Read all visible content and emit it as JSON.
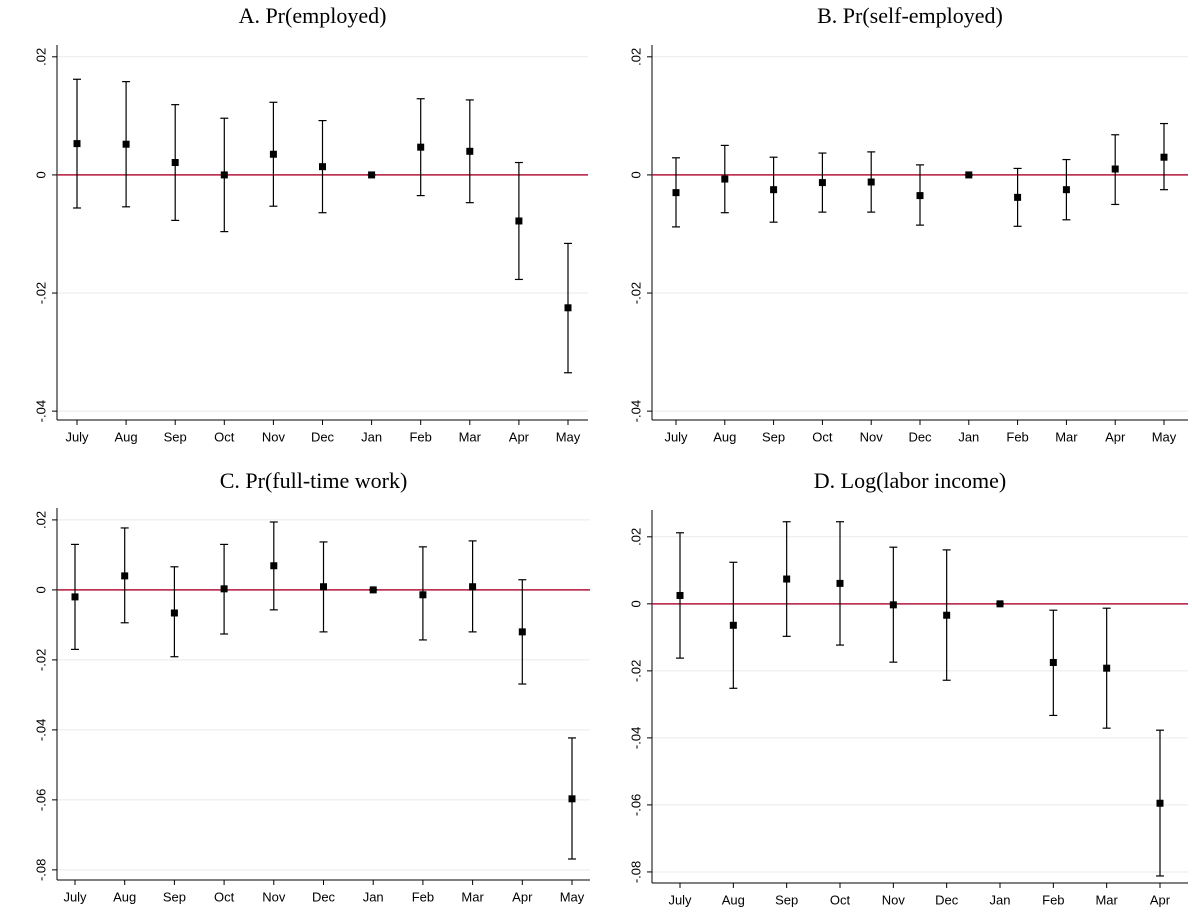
{
  "chart_data": [
    {
      "type": "errorbar",
      "title": "A. Pr(employed)",
      "categories": [
        "July",
        "Aug",
        "Sep",
        "Oct",
        "Nov",
        "Dec",
        "Jan",
        "Feb",
        "Mar",
        "Apr",
        "May"
      ],
      "values": [
        0.0053,
        0.0052,
        0.0021,
        0.0,
        0.0035,
        0.0014,
        0,
        0.0047,
        0.004,
        -0.0078,
        -0.0225
      ],
      "lower": [
        -0.0056,
        -0.0054,
        -0.0077,
        -0.0096,
        -0.0053,
        -0.0064,
        0,
        -0.0035,
        -0.0047,
        -0.0177,
        -0.0335
      ],
      "upper": [
        0.0162,
        0.0158,
        0.0119,
        0.0096,
        0.0123,
        0.0092,
        0,
        0.0129,
        0.0127,
        0.0021,
        -0.0116
      ],
      "color": "#000000",
      "refline": 0,
      "refline_color": "#b5163c",
      "grid": true,
      "ylim": [
        -0.0415,
        0.022
      ],
      "yticks": [
        {
          "value": -0.04,
          "label": "-.04"
        },
        {
          "value": -0.02,
          "label": "-.02"
        },
        0,
        {
          "value": 0.02,
          "label": ".02"
        }
      ]
    },
    {
      "type": "errorbar",
      "title": "B. Pr(self-employed)",
      "categories": [
        "July",
        "Aug",
        "Sep",
        "Oct",
        "Nov",
        "Dec",
        "Jan",
        "Feb",
        "Mar",
        "Apr",
        "May"
      ],
      "values": [
        -0.003,
        -0.0007,
        -0.0025,
        -0.0013,
        -0.0012,
        -0.0035,
        0,
        -0.0038,
        -0.0025,
        0.001,
        0.003
      ],
      "lower": [
        -0.0088,
        -0.0064,
        -0.008,
        -0.0063,
        -0.0063,
        -0.0085,
        0,
        -0.0087,
        -0.0076,
        -0.005,
        -0.0025
      ],
      "upper": [
        0.0029,
        0.005,
        0.003,
        0.0037,
        0.0039,
        0.0017,
        0,
        0.0011,
        0.0026,
        0.0068,
        0.0087
      ],
      "color": "#000000",
      "refline": 0,
      "refline_color": "#b5163c",
      "grid": true,
      "ylim": [
        -0.0415,
        0.022
      ],
      "yticks": [
        {
          "value": -0.04,
          "label": "-.04"
        },
        {
          "value": -0.02,
          "label": "-.02"
        },
        0,
        {
          "value": 0.02,
          "label": ".02"
        }
      ]
    },
    {
      "type": "errorbar",
      "title": "C. Pr(full-time work)",
      "categories": [
        "July",
        "Aug",
        "Sep",
        "Oct",
        "Nov",
        "Dec",
        "Jan",
        "Feb",
        "Mar",
        "Apr",
        "May"
      ],
      "values": [
        -0.002,
        0.004,
        -0.0066,
        0.0003,
        0.0069,
        0.0009,
        0,
        -0.0014,
        0.0009,
        -0.012,
        -0.0597
      ],
      "lower": [
        -0.017,
        -0.0094,
        -0.0191,
        -0.0126,
        -0.0057,
        -0.012,
        0,
        -0.0143,
        -0.012,
        -0.0269,
        -0.0769
      ],
      "upper": [
        0.013,
        0.0177,
        0.0066,
        0.013,
        0.0194,
        0.0137,
        0,
        0.0123,
        0.014,
        0.0029,
        -0.0423
      ],
      "color": "#000000",
      "refline": 0,
      "refline_color": "#b5163c",
      "grid": true,
      "ylim": [
        -0.0829,
        0.0234
      ],
      "yticks": [
        {
          "value": -0.08,
          "label": "-.08"
        },
        {
          "value": -0.06,
          "label": "-.06"
        },
        {
          "value": -0.04,
          "label": "-.04"
        },
        {
          "value": -0.02,
          "label": "-.02"
        },
        0,
        {
          "value": 0.02,
          "label": ".02"
        }
      ]
    },
    {
      "type": "errorbar",
      "title": "D. Log(labor income)",
      "categories": [
        "July",
        "Aug",
        "Sep",
        "Oct",
        "Nov",
        "Dec",
        "Jan",
        "Feb",
        "Mar",
        "Apr"
      ],
      "values": [
        0.0025,
        -0.0064,
        0.0074,
        0.0061,
        -0.0003,
        -0.0034,
        0,
        -0.0175,
        -0.0192,
        -0.0595
      ],
      "lower": [
        -0.0162,
        -0.0252,
        -0.0097,
        -0.0123,
        -0.0174,
        -0.0228,
        0,
        -0.0333,
        -0.0371,
        -0.0812
      ],
      "upper": [
        0.0212,
        0.0124,
        0.0245,
        0.0245,
        0.0169,
        0.0161,
        0,
        -0.0019,
        -0.0013,
        -0.0377
      ],
      "color": "#000000",
      "refline": 0,
      "refline_color": "#b5163c",
      "grid": true,
      "ylim": [
        -0.0833,
        0.028
      ],
      "yticks": [
        {
          "value": -0.08,
          "label": "-.08"
        },
        {
          "value": -0.06,
          "label": "-.06"
        },
        {
          "value": -0.04,
          "label": "-.04"
        },
        {
          "value": -0.02,
          "label": "-.02"
        },
        0,
        {
          "value": 0.02,
          "label": ".02"
        }
      ]
    }
  ]
}
